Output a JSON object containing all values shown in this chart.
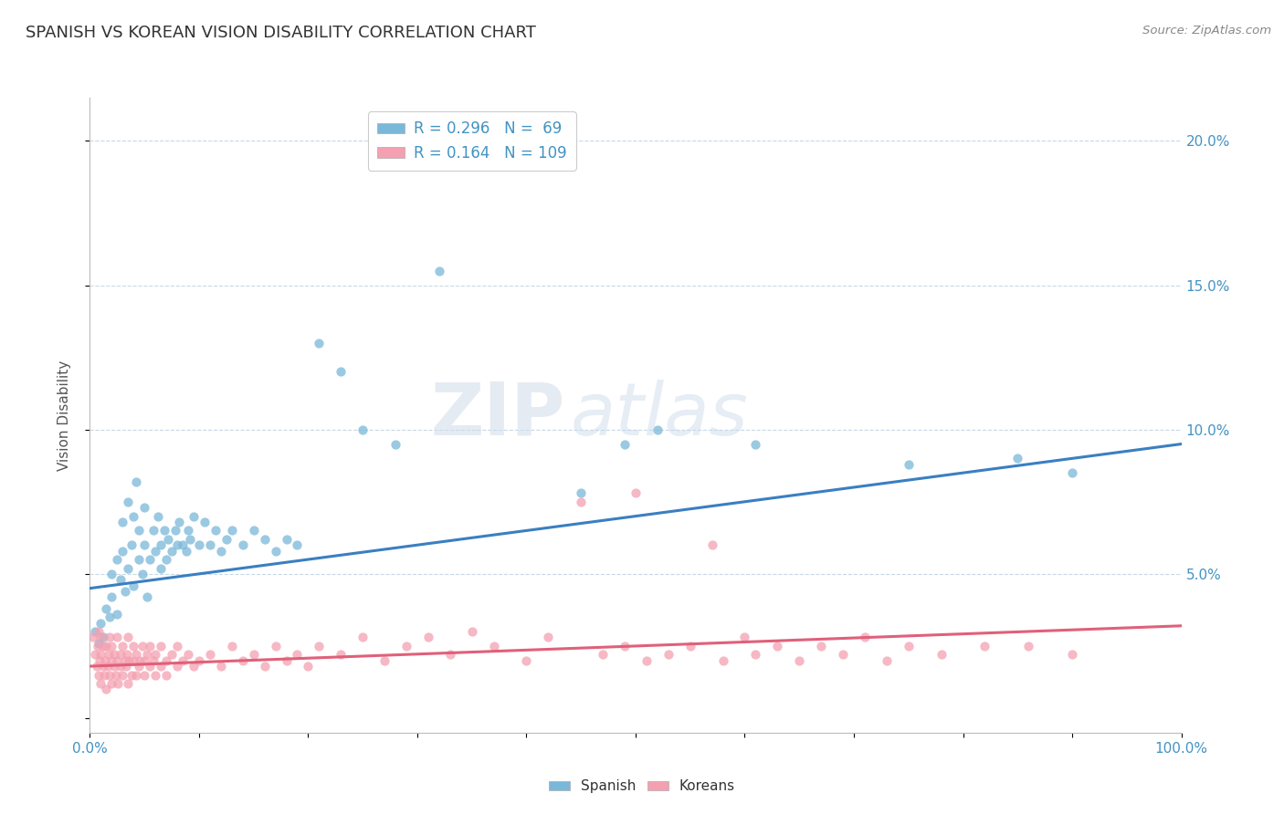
{
  "title": "SPANISH VS KOREAN VISION DISABILITY CORRELATION CHART",
  "source_text": "Source: ZipAtlas.com",
  "ylabel": "Vision Disability",
  "xlim": [
    0.0,
    1.0
  ],
  "ylim": [
    -0.005,
    0.215
  ],
  "x_ticks": [
    0.0,
    0.1,
    0.2,
    0.3,
    0.4,
    0.5,
    0.6,
    0.7,
    0.8,
    0.9,
    1.0
  ],
  "x_tick_labels": [
    "0.0%",
    "",
    "",
    "",
    "",
    "",
    "",
    "",
    "",
    "",
    "100.0%"
  ],
  "y_ticks": [
    0.0,
    0.05,
    0.1,
    0.15,
    0.2
  ],
  "y_tick_labels": [
    "",
    "5.0%",
    "10.0%",
    "15.0%",
    "20.0%"
  ],
  "legend_spanish": "R = 0.296   N =  69",
  "legend_korean": "R = 0.164   N = 109",
  "spanish_color": "#7ab8d9",
  "korean_color": "#f4a0b0",
  "trendline_spanish_color": "#3a7fc1",
  "trendline_korean_color": "#e0607a",
  "watermark_zip": "ZIP",
  "watermark_atlas": "atlas",
  "background_color": "#ffffff",
  "grid_color": "#c8d8e8",
  "title_color": "#333333",
  "axis_label_color": "#4393c3",
  "tick_color": "#4393c3",
  "spanish_points": [
    [
      0.005,
      0.03
    ],
    [
      0.008,
      0.026
    ],
    [
      0.01,
      0.033
    ],
    [
      0.012,
      0.028
    ],
    [
      0.015,
      0.038
    ],
    [
      0.018,
      0.035
    ],
    [
      0.02,
      0.042
    ],
    [
      0.02,
      0.05
    ],
    [
      0.025,
      0.036
    ],
    [
      0.025,
      0.055
    ],
    [
      0.028,
      0.048
    ],
    [
      0.03,
      0.058
    ],
    [
      0.03,
      0.068
    ],
    [
      0.032,
      0.044
    ],
    [
      0.035,
      0.052
    ],
    [
      0.035,
      0.075
    ],
    [
      0.038,
      0.06
    ],
    [
      0.04,
      0.046
    ],
    [
      0.04,
      0.07
    ],
    [
      0.042,
      0.082
    ],
    [
      0.045,
      0.055
    ],
    [
      0.045,
      0.065
    ],
    [
      0.048,
      0.05
    ],
    [
      0.05,
      0.06
    ],
    [
      0.05,
      0.073
    ],
    [
      0.052,
      0.042
    ],
    [
      0.055,
      0.055
    ],
    [
      0.058,
      0.065
    ],
    [
      0.06,
      0.058
    ],
    [
      0.062,
      0.07
    ],
    [
      0.065,
      0.052
    ],
    [
      0.065,
      0.06
    ],
    [
      0.068,
      0.065
    ],
    [
      0.07,
      0.055
    ],
    [
      0.072,
      0.062
    ],
    [
      0.075,
      0.058
    ],
    [
      0.078,
      0.065
    ],
    [
      0.08,
      0.06
    ],
    [
      0.082,
      0.068
    ],
    [
      0.085,
      0.06
    ],
    [
      0.088,
      0.058
    ],
    [
      0.09,
      0.065
    ],
    [
      0.092,
      0.062
    ],
    [
      0.095,
      0.07
    ],
    [
      0.1,
      0.06
    ],
    [
      0.105,
      0.068
    ],
    [
      0.11,
      0.06
    ],
    [
      0.115,
      0.065
    ],
    [
      0.12,
      0.058
    ],
    [
      0.125,
      0.062
    ],
    [
      0.13,
      0.065
    ],
    [
      0.14,
      0.06
    ],
    [
      0.15,
      0.065
    ],
    [
      0.16,
      0.062
    ],
    [
      0.17,
      0.058
    ],
    [
      0.18,
      0.062
    ],
    [
      0.19,
      0.06
    ],
    [
      0.21,
      0.13
    ],
    [
      0.23,
      0.12
    ],
    [
      0.25,
      0.1
    ],
    [
      0.28,
      0.095
    ],
    [
      0.32,
      0.155
    ],
    [
      0.45,
      0.078
    ],
    [
      0.49,
      0.095
    ],
    [
      0.52,
      0.1
    ],
    [
      0.61,
      0.095
    ],
    [
      0.75,
      0.088
    ],
    [
      0.85,
      0.09
    ],
    [
      0.9,
      0.085
    ]
  ],
  "korean_points": [
    [
      0.003,
      0.028
    ],
    [
      0.005,
      0.022
    ],
    [
      0.006,
      0.018
    ],
    [
      0.007,
      0.025
    ],
    [
      0.008,
      0.015
    ],
    [
      0.008,
      0.03
    ],
    [
      0.009,
      0.02
    ],
    [
      0.01,
      0.012
    ],
    [
      0.01,
      0.022
    ],
    [
      0.01,
      0.028
    ],
    [
      0.012,
      0.018
    ],
    [
      0.012,
      0.025
    ],
    [
      0.013,
      0.015
    ],
    [
      0.014,
      0.02
    ],
    [
      0.015,
      0.01
    ],
    [
      0.015,
      0.025
    ],
    [
      0.016,
      0.018
    ],
    [
      0.017,
      0.022
    ],
    [
      0.018,
      0.015
    ],
    [
      0.018,
      0.028
    ],
    [
      0.02,
      0.012
    ],
    [
      0.02,
      0.02
    ],
    [
      0.02,
      0.025
    ],
    [
      0.022,
      0.018
    ],
    [
      0.022,
      0.022
    ],
    [
      0.024,
      0.015
    ],
    [
      0.025,
      0.02
    ],
    [
      0.025,
      0.028
    ],
    [
      0.026,
      0.012
    ],
    [
      0.028,
      0.018
    ],
    [
      0.028,
      0.022
    ],
    [
      0.03,
      0.015
    ],
    [
      0.03,
      0.025
    ],
    [
      0.032,
      0.02
    ],
    [
      0.033,
      0.018
    ],
    [
      0.034,
      0.022
    ],
    [
      0.035,
      0.012
    ],
    [
      0.035,
      0.028
    ],
    [
      0.036,
      0.02
    ],
    [
      0.038,
      0.015
    ],
    [
      0.04,
      0.02
    ],
    [
      0.04,
      0.025
    ],
    [
      0.042,
      0.015
    ],
    [
      0.042,
      0.022
    ],
    [
      0.045,
      0.018
    ],
    [
      0.046,
      0.02
    ],
    [
      0.048,
      0.025
    ],
    [
      0.05,
      0.015
    ],
    [
      0.05,
      0.02
    ],
    [
      0.052,
      0.022
    ],
    [
      0.055,
      0.018
    ],
    [
      0.055,
      0.025
    ],
    [
      0.058,
      0.02
    ],
    [
      0.06,
      0.015
    ],
    [
      0.06,
      0.022
    ],
    [
      0.065,
      0.018
    ],
    [
      0.065,
      0.025
    ],
    [
      0.07,
      0.02
    ],
    [
      0.07,
      0.015
    ],
    [
      0.075,
      0.022
    ],
    [
      0.08,
      0.018
    ],
    [
      0.08,
      0.025
    ],
    [
      0.085,
      0.02
    ],
    [
      0.09,
      0.022
    ],
    [
      0.095,
      0.018
    ],
    [
      0.1,
      0.02
    ],
    [
      0.11,
      0.022
    ],
    [
      0.12,
      0.018
    ],
    [
      0.13,
      0.025
    ],
    [
      0.14,
      0.02
    ],
    [
      0.15,
      0.022
    ],
    [
      0.16,
      0.018
    ],
    [
      0.17,
      0.025
    ],
    [
      0.18,
      0.02
    ],
    [
      0.19,
      0.022
    ],
    [
      0.2,
      0.018
    ],
    [
      0.21,
      0.025
    ],
    [
      0.23,
      0.022
    ],
    [
      0.25,
      0.028
    ],
    [
      0.27,
      0.02
    ],
    [
      0.29,
      0.025
    ],
    [
      0.31,
      0.028
    ],
    [
      0.33,
      0.022
    ],
    [
      0.35,
      0.03
    ],
    [
      0.37,
      0.025
    ],
    [
      0.4,
      0.02
    ],
    [
      0.42,
      0.028
    ],
    [
      0.45,
      0.075
    ],
    [
      0.47,
      0.022
    ],
    [
      0.49,
      0.025
    ],
    [
      0.5,
      0.078
    ],
    [
      0.51,
      0.02
    ],
    [
      0.53,
      0.022
    ],
    [
      0.55,
      0.025
    ],
    [
      0.57,
      0.06
    ],
    [
      0.58,
      0.02
    ],
    [
      0.6,
      0.028
    ],
    [
      0.61,
      0.022
    ],
    [
      0.63,
      0.025
    ],
    [
      0.65,
      0.02
    ],
    [
      0.67,
      0.025
    ],
    [
      0.69,
      0.022
    ],
    [
      0.71,
      0.028
    ],
    [
      0.73,
      0.02
    ],
    [
      0.75,
      0.025
    ],
    [
      0.78,
      0.022
    ],
    [
      0.82,
      0.025
    ],
    [
      0.86,
      0.025
    ],
    [
      0.9,
      0.022
    ]
  ],
  "spanish_trend": {
    "x_start": 0.0,
    "y_start": 0.045,
    "x_end": 1.0,
    "y_end": 0.095
  },
  "korean_trend": {
    "x_start": 0.0,
    "y_start": 0.018,
    "x_end": 1.0,
    "y_end": 0.032
  }
}
